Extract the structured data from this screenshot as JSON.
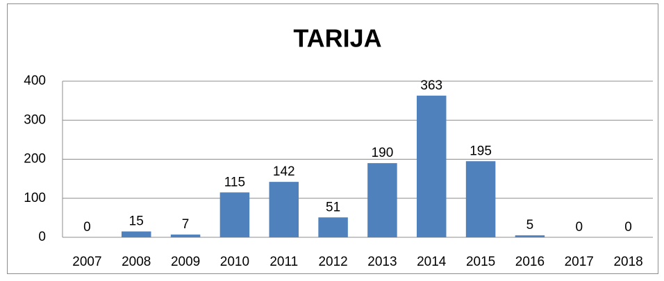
{
  "chart_data": {
    "type": "bar",
    "title": "TARIJA",
    "categories": [
      "2007",
      "2008",
      "2009",
      "2010",
      "2011",
      "2012",
      "2013",
      "2014",
      "2015",
      "2016",
      "2017",
      "2018"
    ],
    "values": [
      0,
      15,
      7,
      115,
      142,
      51,
      190,
      363,
      195,
      5,
      0,
      0
    ],
    "color": "#4f81bd",
    "ylim": [
      0,
      400
    ],
    "yticks": [
      0,
      100,
      200,
      300,
      400
    ],
    "grid": true
  }
}
